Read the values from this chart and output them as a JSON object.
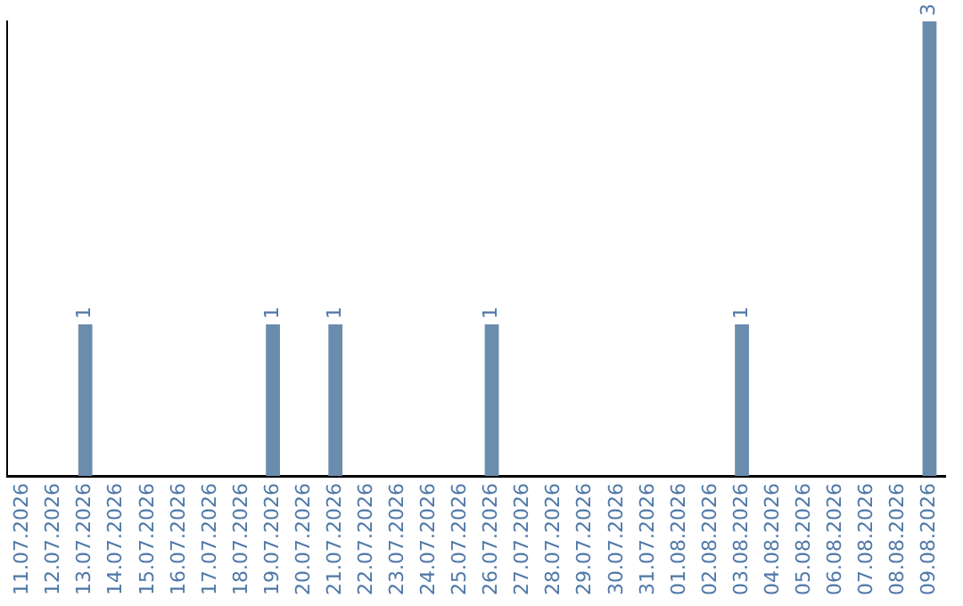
{
  "chart_data": {
    "type": "bar",
    "categories": [
      "11.07.2026",
      "12.07.2026",
      "13.07.2026",
      "14.07.2026",
      "15.07.2026",
      "16.07.2026",
      "17.07.2026",
      "18.07.2026",
      "19.07.2026",
      "20.07.2026",
      "21.07.2026",
      "22.07.2026",
      "23.07.2026",
      "24.07.2026",
      "25.07.2026",
      "26.07.2026",
      "27.07.2026",
      "28.07.2026",
      "29.07.2026",
      "30.07.2026",
      "31.07.2026",
      "01.08.2026",
      "02.08.2026",
      "03.08.2026",
      "04.08.2026",
      "05.08.2026",
      "06.08.2026",
      "07.08.2026",
      "08.08.2026",
      "09.08.2026"
    ],
    "values": [
      0,
      0,
      1,
      0,
      0,
      0,
      0,
      0,
      1,
      0,
      1,
      0,
      0,
      0,
      0,
      1,
      0,
      0,
      0,
      0,
      0,
      0,
      0,
      1,
      0,
      0,
      0,
      0,
      0,
      3
    ],
    "value_labels": [
      null,
      null,
      "1",
      null,
      null,
      null,
      null,
      null,
      "1",
      null,
      "1",
      null,
      null,
      null,
      null,
      "1",
      null,
      null,
      null,
      null,
      null,
      null,
      null,
      "1",
      null,
      null,
      null,
      null,
      null,
      "3"
    ],
    "color": "#6a8cad",
    "tick_labels": "x",
    "grid": false,
    "legend": false
  }
}
